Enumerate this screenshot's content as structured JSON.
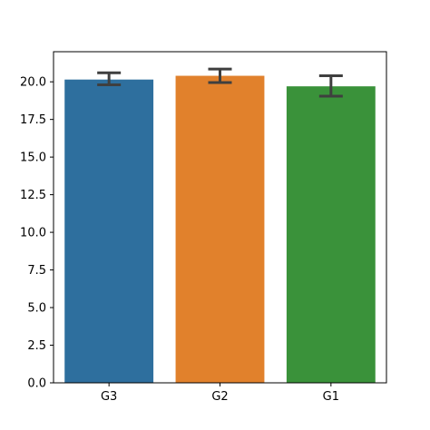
{
  "chart_data": {
    "type": "bar",
    "title": "",
    "xlabel": "",
    "ylabel": "",
    "categories": [
      "G3",
      "G2",
      "G1"
    ],
    "values": [
      20.15,
      20.4,
      19.7
    ],
    "error_bars": {
      "lower": [
        19.8,
        19.95,
        19.05
      ],
      "upper": [
        20.6,
        20.85,
        20.4
      ]
    },
    "colors": [
      "#2e6f9e",
      "#e1812c",
      "#3a923a"
    ],
    "errorbar_color": "#3f3f3f",
    "ylim": [
      0,
      22.0
    ],
    "yticks": [
      "0.0",
      "2.5",
      "5.0",
      "7.5",
      "10.0",
      "12.5",
      "15.0",
      "17.5",
      "20.0"
    ],
    "grid": false,
    "legend": "none"
  }
}
